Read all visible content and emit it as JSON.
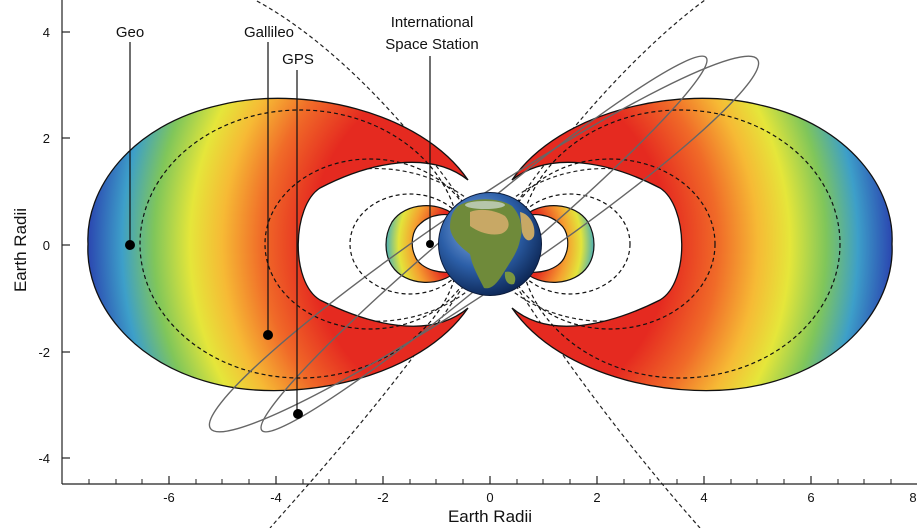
{
  "figure": {
    "x_axis": {
      "label": "Earth Radii",
      "ticks": [
        "-6",
        "-4",
        "-2",
        "0",
        "2",
        "4",
        "6",
        "8"
      ],
      "range": [
        -8,
        8
      ]
    },
    "y_axis": {
      "label": "Earth Radii",
      "ticks": [
        "4",
        "2",
        "0",
        "-2",
        "-4"
      ],
      "range": [
        -5,
        5
      ]
    },
    "labels": {
      "geo": "Geo",
      "galileo": "Gallileo",
      "gps": "GPS",
      "iss_line1": "International",
      "iss_line2": "Space Station"
    },
    "orbit_markers": [
      {
        "name": "Geo",
        "x": -6.6,
        "y": 0
      },
      {
        "name": "Gallileo",
        "x": -4.1,
        "y": -1.7
      },
      {
        "name": "GPS",
        "x": -3.5,
        "y": -3.15
      },
      {
        "name": "International Space Station",
        "x": -1.1,
        "y": 0
      }
    ],
    "belt_colors": [
      "#2b4fb5",
      "#3aa0c8",
      "#7cc55a",
      "#e8e83c",
      "#f4a23a",
      "#e82a22"
    ]
  }
}
